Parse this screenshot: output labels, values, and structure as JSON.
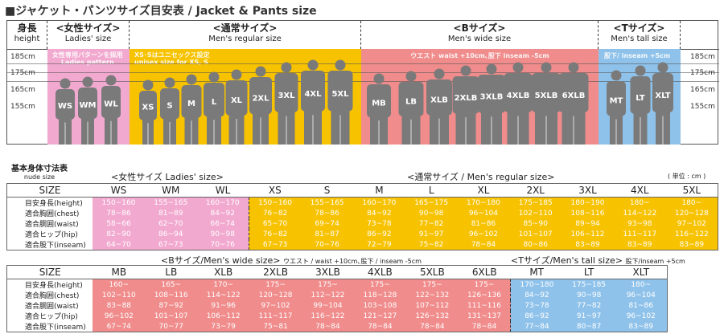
{
  "title": "■ジャケット・パンツサイズ目安表  /  Jacket & Pants size",
  "colors": {
    "ladies": "#f2a9cf",
    "regular": "#f7c200",
    "wide": "#f08c8c",
    "tall": "#8fc2ea",
    "figure": "#7a7a7a"
  },
  "figure": {
    "height_label": {
      "jp": "身長",
      "en": "height"
    },
    "groups": [
      {
        "jp": "<女性サイズ>",
        "en": "Ladies' size",
        "note": "女性専用パターンを採用\nLadies pattern",
        "sizes": [
          "WS",
          "WM",
          "WL"
        ]
      },
      {
        "jp": "<通常サイズ>",
        "en": "Men's regular size",
        "note": "XS･Sはユニセックス設定\nunisex size for XS, S",
        "sizes": [
          "XS",
          "S",
          "M",
          "L",
          "XL",
          "2XL",
          "3XL",
          "4XL",
          "5XL"
        ]
      },
      {
        "jp": "<Bサイズ>",
        "en": "Men's wide size",
        "note": "ウエスト waist +10cm､股下 inseam -5cm",
        "sizes": [
          "MB",
          "LB",
          "XLB",
          "2XLB",
          "3XLB",
          "4XLB",
          "5XLB",
          "6XLB"
        ]
      },
      {
        "jp": "<Tサイズ>",
        "en": "Men's tall size",
        "note": "股下/ inseam +5cm",
        "sizes": [
          "MT",
          "LT",
          "XLT"
        ]
      }
    ],
    "height_marks": [
      "185cm",
      "175cm",
      "165cm",
      "155cm"
    ]
  },
  "nude_size": {
    "jp": "基本身体寸法表",
    "en": "nude size"
  },
  "unit": "( 単位 : cm )",
  "row_labels": [
    "目安身長(height)",
    "適合胸囲(chest)",
    "適合胴囲(waist)",
    "適合ヒップ(hip)",
    "適合股下(inseam)"
  ],
  "size_header": "SIZE",
  "table1": {
    "caption_ladies": "<女性サイズ Ladies' size>",
    "caption_regular": "<通常サイズ / Men's regular size>",
    "columns": [
      {
        "size": "WS",
        "group": "ladies",
        "values": [
          "150~160",
          "78~86",
          "58~66",
          "82~90",
          "64~70"
        ]
      },
      {
        "size": "WM",
        "group": "ladies",
        "values": [
          "155~165",
          "81~89",
          "62~70",
          "86~94",
          "67~73"
        ]
      },
      {
        "size": "WL",
        "group": "ladies",
        "values": [
          "160~170",
          "84~92",
          "66~74",
          "90~98",
          "70~76"
        ]
      },
      {
        "size": "XS",
        "group": "regular",
        "values": [
          "150~160",
          "76~82",
          "65~70",
          "76~82",
          "67~73"
        ]
      },
      {
        "size": "S",
        "group": "regular",
        "values": [
          "155~165",
          "78~86",
          "69~74",
          "81~87",
          "70~76"
        ]
      },
      {
        "size": "M",
        "group": "regular",
        "values": [
          "160~170",
          "84~92",
          "73~78",
          "86~92",
          "72~79"
        ]
      },
      {
        "size": "L",
        "group": "regular",
        "values": [
          "165~175",
          "90~98",
          "77~82",
          "91~97",
          "75~82"
        ]
      },
      {
        "size": "XL",
        "group": "regular",
        "values": [
          "170~180",
          "96~104",
          "81~86",
          "96~102",
          "78~84"
        ]
      },
      {
        "size": "2XL",
        "group": "regular",
        "values": [
          "175~185",
          "102~110",
          "85~90",
          "101~107",
          "80~86"
        ]
      },
      {
        "size": "3XL",
        "group": "regular",
        "values": [
          "180~190",
          "108~116",
          "89~94",
          "106~112",
          "83~89"
        ]
      },
      {
        "size": "4XL",
        "group": "regular",
        "values": [
          "180~",
          "114~122",
          "93~98",
          "111~117",
          "83~89"
        ]
      },
      {
        "size": "5XL",
        "group": "regular",
        "values": [
          "180~",
          "120~128",
          "97~102",
          "116~122",
          "83~89"
        ]
      }
    ]
  },
  "table2": {
    "caption_wide": "<Bサイズ/Men's wide size>",
    "caption_wide_note": "ウエスト / waist +10cm､股下 / inseam -5cm",
    "caption_tall": "<Tサイズ/Men's tall size>",
    "caption_tall_note": "股下/inseam +5cm",
    "columns": [
      {
        "size": "MB",
        "group": "wide",
        "values": [
          "160~",
          "102~110",
          "83~88",
          "96~102",
          "67~74"
        ]
      },
      {
        "size": "LB",
        "group": "wide",
        "values": [
          "165~",
          "108~116",
          "87~92",
          "101~107",
          "70~77"
        ]
      },
      {
        "size": "XLB",
        "group": "wide",
        "values": [
          "170~",
          "114~122",
          "91~96",
          "106~112",
          "73~79"
        ]
      },
      {
        "size": "2XLB",
        "group": "wide",
        "values": [
          "175~",
          "120~128",
          "97~102",
          "111~117",
          "75~81"
        ]
      },
      {
        "size": "3XLB",
        "group": "wide",
        "values": [
          "175~",
          "112~122",
          "99~104",
          "116~122",
          "78~84"
        ]
      },
      {
        "size": "4XLB",
        "group": "wide",
        "values": [
          "175~",
          "118~128",
          "103~108",
          "121~127",
          "78~84"
        ]
      },
      {
        "size": "5XLB",
        "group": "wide",
        "values": [
          "175~",
          "122~132",
          "107~112",
          "126~132",
          "78~84"
        ]
      },
      {
        "size": "6XLB",
        "group": "wide",
        "values": [
          "175~",
          "126~136",
          "111~116",
          "131~137",
          "78~84"
        ]
      },
      {
        "size": "MT",
        "group": "tall",
        "values": [
          "170~180",
          "84~92",
          "73~78",
          "86~92",
          "77~84"
        ]
      },
      {
        "size": "LT",
        "group": "tall",
        "values": [
          "175~185",
          "90~98",
          "77~82",
          "91~97",
          "80~87"
        ]
      },
      {
        "size": "XLT",
        "group": "tall",
        "values": [
          "180~",
          "96~104",
          "81~86",
          "96~102",
          "83~89"
        ]
      }
    ]
  }
}
